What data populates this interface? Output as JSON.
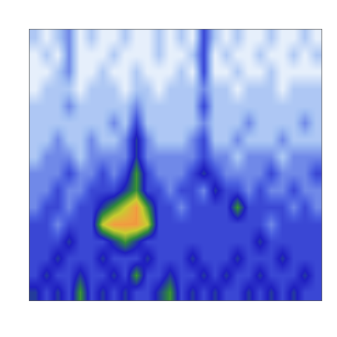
{
  "chart_data": {
    "type": "heatmap",
    "tick_labels": false,
    "zlim": [
      0,
      9
    ],
    "cells": [
      [
        5,
        4,
        5,
        4,
        6,
        4,
        5,
        4,
        5,
        4,
        4,
        5,
        6,
        4,
        5,
        4,
        5,
        4,
        4,
        5,
        4,
        5,
        4,
        5,
        4,
        4
      ],
      [
        4,
        5,
        4,
        4,
        5,
        4,
        4,
        5,
        4,
        6,
        4,
        4,
        5,
        4,
        4,
        5,
        4,
        5,
        4,
        4,
        5,
        4,
        4,
        4,
        5,
        4
      ],
      [
        4,
        4,
        5,
        4,
        4,
        4,
        5,
        4,
        4,
        4,
        5,
        4,
        4,
        4,
        5,
        4,
        4,
        4,
        5,
        4,
        4,
        4,
        5,
        4,
        4,
        4
      ],
      [
        4,
        4,
        4,
        5,
        4,
        4,
        4,
        5,
        6,
        5,
        4,
        4,
        4,
        4,
        4,
        4,
        4,
        4,
        4,
        4,
        5,
        4,
        4,
        4,
        4,
        4
      ],
      [
        4,
        4,
        3,
        4,
        4,
        4,
        7,
        8,
        8,
        8,
        7,
        4,
        4,
        4,
        4,
        4,
        4,
        4,
        4,
        4,
        4,
        3,
        4,
        4,
        4,
        4
      ],
      [
        3,
        4,
        4,
        3,
        4,
        4,
        5,
        6,
        7,
        8,
        6,
        4,
        4,
        3,
        4,
        4,
        4,
        4,
        6,
        4,
        4,
        4,
        4,
        3,
        4,
        3
      ],
      [
        3,
        3,
        4,
        3,
        3,
        4,
        4,
        4,
        5,
        6,
        4,
        4,
        3,
        4,
        4,
        3,
        5,
        4,
        4,
        3,
        4,
        3,
        3,
        4,
        3,
        3
      ],
      [
        3,
        3,
        3,
        4,
        3,
        3,
        4,
        3,
        4,
        6,
        4,
        3,
        3,
        3,
        4,
        5,
        4,
        3,
        3,
        3,
        3,
        4,
        3,
        3,
        3,
        4
      ],
      [
        2,
        3,
        3,
        3,
        2,
        3,
        3,
        3,
        3,
        5,
        3,
        3,
        3,
        3,
        3,
        4,
        3,
        3,
        2,
        3,
        3,
        3,
        2,
        3,
        3,
        3
      ],
      [
        2,
        2,
        3,
        2,
        2,
        3,
        2,
        2,
        3,
        5,
        3,
        2,
        2,
        2,
        3,
        4,
        2,
        2,
        3,
        2,
        2,
        2,
        3,
        2,
        2,
        2
      ],
      [
        2,
        2,
        2,
        2,
        2,
        2,
        2,
        3,
        2,
        4,
        2,
        2,
        2,
        2,
        2,
        3,
        2,
        2,
        2,
        3,
        2,
        2,
        2,
        2,
        3,
        2
      ],
      [
        2,
        2,
        2,
        3,
        2,
        2,
        2,
        2,
        2,
        3,
        2,
        2,
        2,
        2,
        2,
        4,
        2,
        2,
        2,
        2,
        2,
        2,
        2,
        2,
        2,
        2
      ],
      [
        1,
        2,
        2,
        2,
        1,
        2,
        2,
        2,
        1,
        2,
        2,
        1,
        2,
        2,
        2,
        3,
        2,
        2,
        1,
        2,
        2,
        2,
        1,
        2,
        2,
        2
      ],
      [
        1,
        1,
        2,
        3,
        1,
        1,
        2,
        1,
        1,
        2,
        1,
        1,
        1,
        2,
        1,
        4,
        1,
        1,
        2,
        1,
        1,
        2,
        1,
        1,
        1,
        1
      ],
      [
        1,
        2,
        1,
        3,
        1,
        1,
        1,
        2,
        1,
        1,
        1,
        2,
        1,
        1,
        2,
        4,
        1,
        2,
        1,
        1,
        2,
        1,
        1,
        2,
        1,
        2
      ],
      [
        2,
        1,
        2,
        3,
        1,
        2,
        1,
        1,
        2,
        1,
        1,
        2,
        1,
        2,
        1,
        4,
        2,
        1,
        2,
        1,
        1,
        2,
        1,
        1,
        2,
        1
      ]
    ]
  }
}
